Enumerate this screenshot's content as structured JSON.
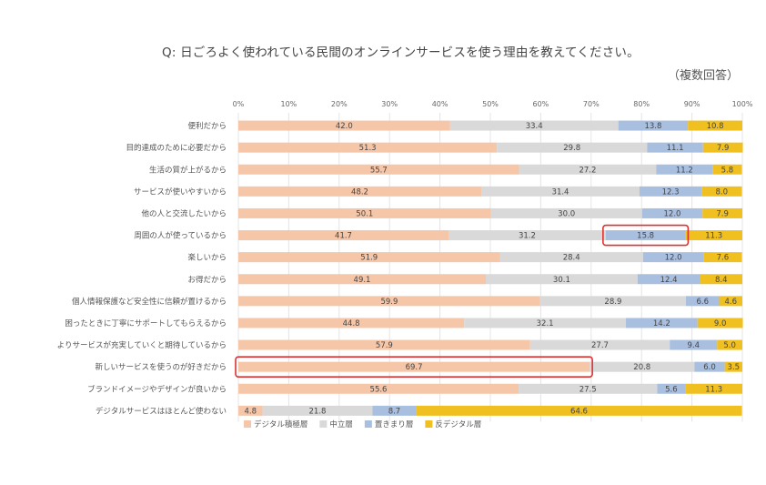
{
  "chart_data": {
    "type": "bar",
    "orientation": "horizontal",
    "stacked": true,
    "title": "Q: 日ごろよく使われている民間のオンラインサービスを使う理由を教えてください。",
    "subtitle": "（複数回答）",
    "x_ticks": [
      "0%",
      "10%",
      "20%",
      "30%",
      "40%",
      "50%",
      "60%",
      "70%",
      "80%",
      "90%",
      "100%"
    ],
    "xlim": [
      0,
      100
    ],
    "grid": true,
    "legend_position": "bottom",
    "categories": [
      "便利だから",
      "目的達成のために必要だから",
      "生活の質が上がるから",
      "サービスが使いやすいから",
      "他の人と交流したいから",
      "周囲の人が使っているから",
      "楽しいから",
      "お得だから",
      "個人情報保護など安全性に信頼が置けるから",
      "困ったときに丁寧にサポートしてもらえるから",
      "よりサービスが充実していくと期待しているから",
      "新しいサービスを使うのが好きだから",
      "ブランドイメージやデザインが良いから",
      "デジタルサービスはほとんど使わない"
    ],
    "series": [
      {
        "name": "デジタル積極層",
        "color": "#f5c6a8",
        "values": [
          42.0,
          51.3,
          55.7,
          48.2,
          50.1,
          41.7,
          51.9,
          49.1,
          59.9,
          44.8,
          57.9,
          69.7,
          55.6,
          4.8
        ]
      },
      {
        "name": "中立層",
        "color": "#d9d9d9",
        "values": [
          33.4,
          29.8,
          27.2,
          31.4,
          30.0,
          31.2,
          28.4,
          30.1,
          28.9,
          32.1,
          27.7,
          20.8,
          27.5,
          21.8
        ]
      },
      {
        "name": "置きまり層",
        "color": "#a9bfe0",
        "values": [
          13.8,
          11.1,
          11.2,
          12.3,
          12.0,
          15.8,
          12.0,
          12.4,
          6.6,
          14.2,
          9.4,
          6.0,
          5.6,
          8.7
        ]
      },
      {
        "name": "反デジタル層",
        "color": "#f0c020",
        "values": [
          10.8,
          7.9,
          5.8,
          8.0,
          7.9,
          11.3,
          7.6,
          8.4,
          4.6,
          9.0,
          5.0,
          3.5,
          11.3,
          64.6
        ]
      }
    ],
    "labels": [
      [
        "42.0",
        "33.4",
        "13.8",
        "10.8"
      ],
      [
        "51.3",
        "29.8",
        "11.1",
        "7.9"
      ],
      [
        "55.7",
        "27.2",
        "11.2",
        "5.8"
      ],
      [
        "48.2",
        "31.4",
        "12.3",
        "8.0"
      ],
      [
        "50.1",
        "30.0",
        "12.0",
        "7.9"
      ],
      [
        "41.7",
        "31.2",
        "15.8",
        "11.3"
      ],
      [
        "51.9",
        "28.4",
        "12.0",
        "7.6"
      ],
      [
        "49.1",
        "30.1",
        "12.4",
        "8.4"
      ],
      [
        "59.9",
        "28.9",
        "6.6",
        "4.6"
      ],
      [
        "44.8",
        "32.1",
        "14.2",
        "9.0"
      ],
      [
        "57.9",
        "27.7",
        "9.4",
        "5.0"
      ],
      [
        "69.7",
        "20.8",
        "6.0",
        "3.5"
      ],
      [
        "55.6",
        "27.5",
        "5.6",
        "11.3"
      ],
      [
        "4.8",
        "21.8",
        "8.7",
        "64.6"
      ]
    ],
    "highlights": [
      {
        "category_index": 5,
        "series_index": 2,
        "color": "#e03030"
      },
      {
        "category_index": 11,
        "series_index": 0,
        "color": "#e03030"
      }
    ]
  }
}
